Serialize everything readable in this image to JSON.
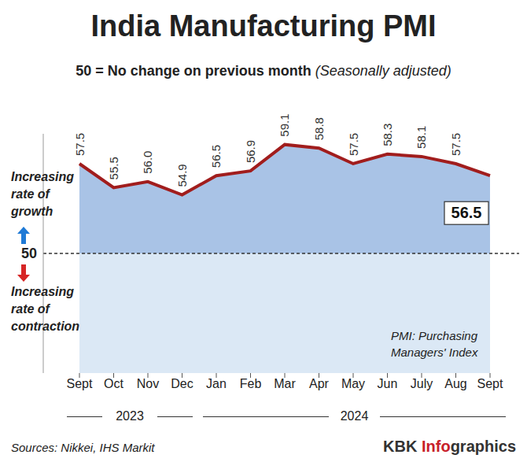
{
  "chart_data": {
    "type": "line",
    "title": "India Manufacturing PMI",
    "subtitle": "50 = No change on previous month (Seasonally adjusted)",
    "categories": [
      "Sept",
      "Oct",
      "Nov",
      "Dec",
      "Jan",
      "Feb",
      "Mar",
      "Apr",
      "May",
      "Jun",
      "July",
      "Aug",
      "Sept"
    ],
    "values": [
      57.5,
      55.5,
      56.0,
      54.9,
      56.5,
      56.9,
      59.1,
      58.8,
      57.5,
      58.3,
      58.1,
      57.5,
      56.5
    ],
    "value_labels": [
      "57.5",
      "55.5",
      "56.0",
      "54.9",
      "56.5",
      "56.9",
      "59.1",
      "58.8",
      "57.5",
      "58.3",
      "58.1",
      "57.5",
      "56.5"
    ],
    "color": "#a11d1d",
    "ylim": [
      40,
      60
    ],
    "yticks": [
      50
    ],
    "data_labels": true,
    "grid": false,
    "annotations": [
      "Increasing rate of growth",
      "Increasing rate of contraction",
      "PMI: Purchasing Managers' Index",
      "2023",
      "2024"
    ],
    "source": "Sources: Nikkei, IHS Markit",
    "credit": "KBK Infographics"
  }
}
